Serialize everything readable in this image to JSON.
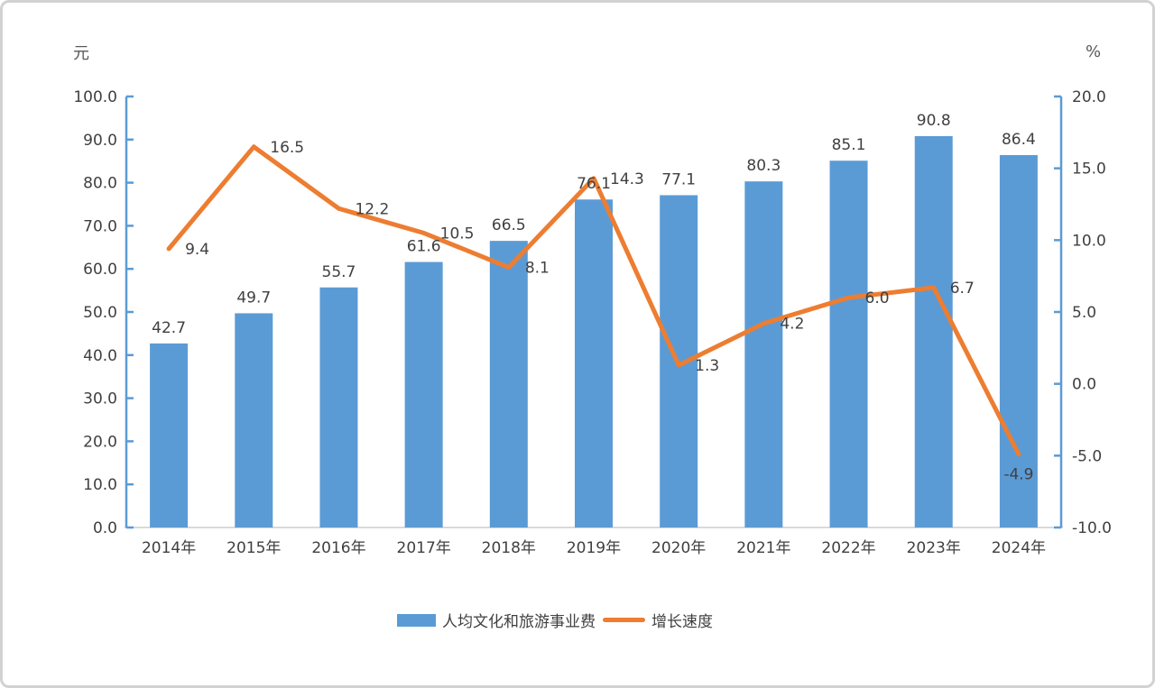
{
  "page": {
    "background": "#ffffff",
    "frame_border_color": "#d2d2d2"
  },
  "chart_data": {
    "type": "bar",
    "subtype": "bar-line-combo",
    "categories": [
      "2014年",
      "2015年",
      "2016年",
      "2017年",
      "2018年",
      "2019年",
      "2020年",
      "2021年",
      "2022年",
      "2023年",
      "2024年"
    ],
    "series": [
      {
        "name": "人均文化和旅游事业费",
        "type": "bar",
        "axis": "left",
        "color": "#5B9BD5",
        "values": [
          42.7,
          49.7,
          55.7,
          61.6,
          66.5,
          76.1,
          77.1,
          80.3,
          85.1,
          90.8,
          86.4
        ]
      },
      {
        "name": "增长速度",
        "type": "line",
        "axis": "right",
        "color": "#ED7D31",
        "values": [
          9.4,
          16.5,
          12.2,
          10.5,
          8.1,
          14.3,
          1.3,
          4.2,
          6.0,
          6.7,
          -4.9
        ],
        "label_placements": [
          "right",
          "right",
          "right",
          "right",
          "right",
          "right",
          "right",
          "right",
          "right",
          "right",
          "below"
        ]
      }
    ],
    "left_axis": {
      "title": "元",
      "min": 0,
      "max": 100,
      "step": 10,
      "color": "#5B9BD5"
    },
    "right_axis": {
      "title": "%",
      "min": -10,
      "max": 20,
      "step": 5,
      "color": "#5B9BD5"
    },
    "x_axis_line_color": "#d9d9d9",
    "text_color": "#404040",
    "data_labels": true,
    "grid": false,
    "legend_position": "bottom"
  }
}
